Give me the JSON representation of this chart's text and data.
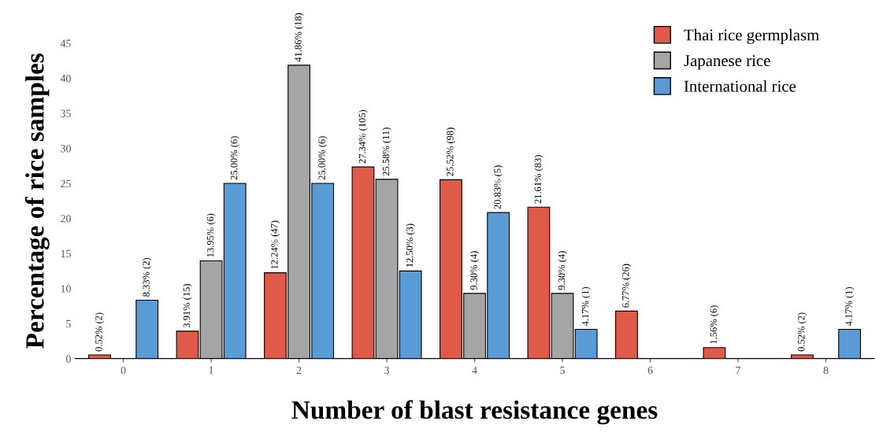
{
  "chart_data": {
    "type": "bar",
    "xlabel": "Number of blast resistance genes",
    "ylabel": "Percentage of rice samples",
    "categories": [
      "0",
      "1",
      "2",
      "3",
      "4",
      "5",
      "6",
      "7",
      "8"
    ],
    "series": [
      {
        "name": "Thai rice germplasm",
        "color": "#e05a4a",
        "values": [
          0.52,
          3.91,
          12.24,
          27.34,
          25.52,
          21.61,
          6.77,
          1.56,
          0.52
        ],
        "value_labels": [
          "0.52% (2)",
          "3.91% (15)",
          "12.24% (47)",
          "27.34% (105)",
          "25.52% (98)",
          "21.61% (83)",
          "6.77% (26)",
          "1.56% (6)",
          "0.52% (2)"
        ]
      },
      {
        "name": "Japanese rice",
        "color": "#a5a5a5",
        "values": [
          null,
          13.95,
          41.86,
          25.58,
          9.3,
          9.3,
          null,
          null,
          null
        ],
        "value_labels": [
          null,
          "13.95% (6)",
          "41.86% (18)",
          "25.58% (11)",
          "9.30% (4)",
          "9.30% (4)",
          null,
          null,
          null
        ]
      },
      {
        "name": "International rice",
        "color": "#5b9bd5",
        "values": [
          8.33,
          25.0,
          25.0,
          12.5,
          20.83,
          4.17,
          null,
          null,
          4.17
        ],
        "value_labels": [
          "8.33% (2)",
          "25.00% (6)",
          "25.00% (6)",
          "12.50% (3)",
          "20.83% (5)",
          "4.17% (1)",
          null,
          null,
          "4.17% (1)"
        ]
      }
    ],
    "ylim": [
      0,
      45
    ],
    "yticks": [
      0,
      5,
      10,
      15,
      20,
      25,
      30,
      35,
      40,
      45
    ],
    "grid": false,
    "legend": "top right"
  }
}
